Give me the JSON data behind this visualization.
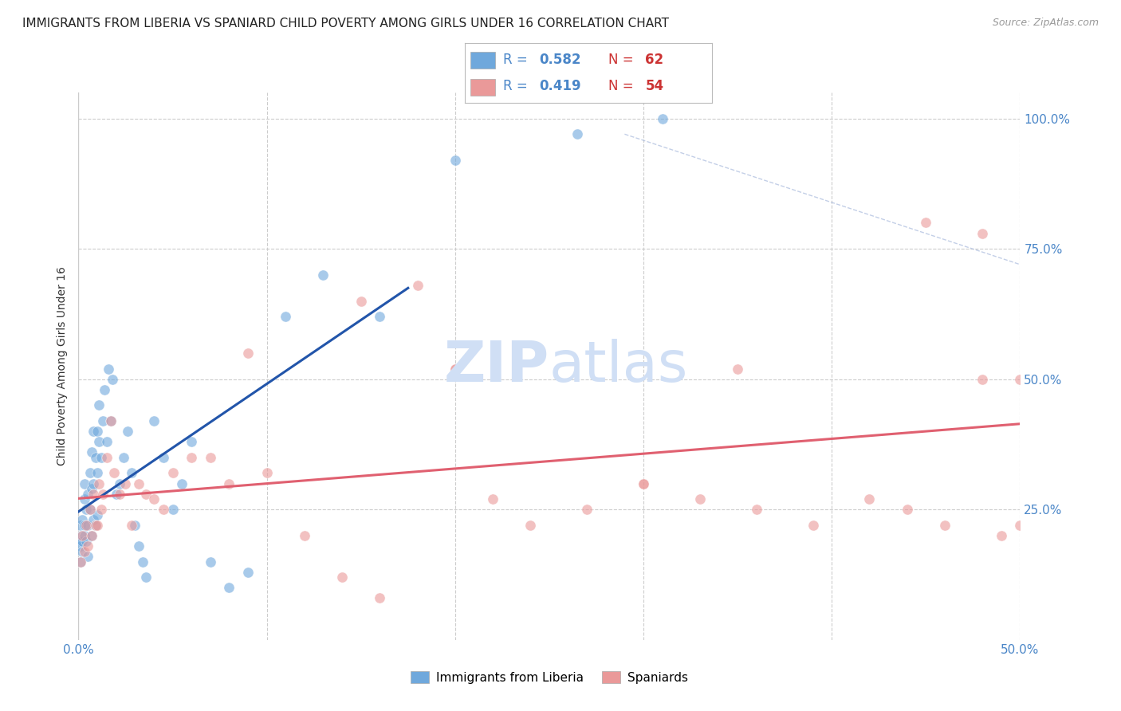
{
  "title": "IMMIGRANTS FROM LIBERIA VS SPANIARD CHILD POVERTY AMONG GIRLS UNDER 16 CORRELATION CHART",
  "source": "Source: ZipAtlas.com",
  "ylabel": "Child Poverty Among Girls Under 16",
  "xlim": [
    0.0,
    0.5
  ],
  "ylim": [
    0.0,
    1.05
  ],
  "legend_labels": [
    "Immigrants from Liberia",
    "Spaniards"
  ],
  "r_liberia": 0.582,
  "n_liberia": 62,
  "r_spaniard": 0.419,
  "n_spaniard": 54,
  "blue_color": "#6fa8dc",
  "pink_color": "#ea9999",
  "line_blue": "#2255aa",
  "line_pink": "#e06070",
  "label_color": "#4a86c8",
  "watermark_color": "#d0dff5",
  "background_color": "#ffffff",
  "grid_color": "#cccccc",
  "liberia_x": [
    0.0005,
    0.001,
    0.001,
    0.001,
    0.0015,
    0.002,
    0.002,
    0.002,
    0.003,
    0.003,
    0.003,
    0.003,
    0.004,
    0.004,
    0.005,
    0.005,
    0.005,
    0.006,
    0.006,
    0.007,
    0.007,
    0.007,
    0.008,
    0.008,
    0.008,
    0.009,
    0.009,
    0.01,
    0.01,
    0.01,
    0.011,
    0.011,
    0.012,
    0.013,
    0.014,
    0.015,
    0.016,
    0.017,
    0.018,
    0.02,
    0.022,
    0.024,
    0.026,
    0.028,
    0.03,
    0.032,
    0.034,
    0.036,
    0.04,
    0.045,
    0.05,
    0.055,
    0.06,
    0.07,
    0.08,
    0.09,
    0.11,
    0.13,
    0.16,
    0.2,
    0.265,
    0.31
  ],
  "liberia_y": [
    0.19,
    0.22,
    0.18,
    0.15,
    0.2,
    0.17,
    0.23,
    0.19,
    0.22,
    0.2,
    0.27,
    0.3,
    0.19,
    0.25,
    0.22,
    0.28,
    0.16,
    0.32,
    0.25,
    0.2,
    0.29,
    0.36,
    0.3,
    0.23,
    0.4,
    0.22,
    0.35,
    0.24,
    0.32,
    0.4,
    0.38,
    0.45,
    0.35,
    0.42,
    0.48,
    0.38,
    0.52,
    0.42,
    0.5,
    0.28,
    0.3,
    0.35,
    0.4,
    0.32,
    0.22,
    0.18,
    0.15,
    0.12,
    0.42,
    0.35,
    0.25,
    0.3,
    0.38,
    0.15,
    0.1,
    0.13,
    0.62,
    0.7,
    0.62,
    0.92,
    0.97,
    1.0
  ],
  "spaniard_x": [
    0.001,
    0.002,
    0.003,
    0.004,
    0.005,
    0.006,
    0.007,
    0.008,
    0.009,
    0.01,
    0.011,
    0.012,
    0.013,
    0.015,
    0.017,
    0.019,
    0.022,
    0.025,
    0.028,
    0.032,
    0.036,
    0.04,
    0.045,
    0.05,
    0.06,
    0.07,
    0.08,
    0.09,
    0.1,
    0.12,
    0.14,
    0.16,
    0.18,
    0.2,
    0.22,
    0.24,
    0.27,
    0.3,
    0.33,
    0.36,
    0.39,
    0.42,
    0.44,
    0.46,
    0.48,
    0.49,
    0.5,
    0.5,
    0.48,
    0.15,
    0.2,
    0.35,
    0.3,
    0.45
  ],
  "spaniard_y": [
    0.15,
    0.2,
    0.17,
    0.22,
    0.18,
    0.25,
    0.2,
    0.28,
    0.22,
    0.22,
    0.3,
    0.25,
    0.28,
    0.35,
    0.42,
    0.32,
    0.28,
    0.3,
    0.22,
    0.3,
    0.28,
    0.27,
    0.25,
    0.32,
    0.35,
    0.35,
    0.3,
    0.55,
    0.32,
    0.2,
    0.12,
    0.08,
    0.68,
    0.52,
    0.27,
    0.22,
    0.25,
    0.3,
    0.27,
    0.25,
    0.22,
    0.27,
    0.25,
    0.22,
    0.5,
    0.2,
    0.5,
    0.22,
    0.78,
    0.65,
    0.52,
    0.52,
    0.3,
    0.8
  ]
}
